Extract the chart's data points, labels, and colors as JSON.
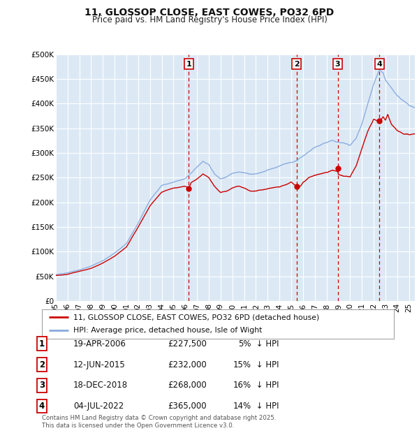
{
  "title": "11, GLOSSOP CLOSE, EAST COWES, PO32 6PD",
  "subtitle": "Price paid vs. HM Land Registry's House Price Index (HPI)",
  "legend_line1": "11, GLOSSOP CLOSE, EAST COWES, PO32 6PD (detached house)",
  "legend_line2": "HPI: Average price, detached house, Isle of Wight",
  "plot_bg_color": "#dce9f5",
  "grid_color": "#ffffff",
  "line_color_property": "#cc0000",
  "line_color_hpi": "#88aadd",
  "x_start": 1995,
  "x_end": 2025.5,
  "y_min": 0,
  "y_max": 500000,
  "yticks": [
    0,
    50000,
    100000,
    150000,
    200000,
    250000,
    300000,
    350000,
    400000,
    450000,
    500000
  ],
  "ytick_labels": [
    "£0",
    "£50K",
    "£100K",
    "£150K",
    "£200K",
    "£250K",
    "£300K",
    "£350K",
    "£400K",
    "£450K",
    "£500K"
  ],
  "transactions": [
    {
      "num": 1,
      "date": "19-APR-2006",
      "year": 2006.3,
      "price": 227500,
      "pct": "5%",
      "dir": "↓"
    },
    {
      "num": 2,
      "date": "12-JUN-2015",
      "year": 2015.45,
      "price": 232000,
      "pct": "15%",
      "dir": "↓"
    },
    {
      "num": 3,
      "date": "18-DEC-2018",
      "year": 2018.95,
      "price": 268000,
      "pct": "16%",
      "dir": "↓"
    },
    {
      "num": 4,
      "date": "04-JUL-2022",
      "year": 2022.5,
      "price": 365000,
      "pct": "14%",
      "dir": "↓"
    }
  ],
  "footer": "Contains HM Land Registry data © Crown copyright and database right 2025.\nThis data is licensed under the Open Government Licence v3.0.",
  "xticks": [
    1995,
    1996,
    1997,
    1998,
    1999,
    2000,
    2001,
    2002,
    2003,
    2004,
    2005,
    2006,
    2007,
    2008,
    2009,
    2010,
    2011,
    2012,
    2013,
    2014,
    2015,
    2016,
    2017,
    2018,
    2019,
    2020,
    2021,
    2022,
    2023,
    2024,
    2025
  ],
  "hpi_keypoints": [
    [
      1995.0,
      52000
    ],
    [
      1996.0,
      56000
    ],
    [
      1997.0,
      62000
    ],
    [
      1998.0,
      70000
    ],
    [
      1999.0,
      82000
    ],
    [
      2000.0,
      98000
    ],
    [
      2001.0,
      118000
    ],
    [
      2002.0,
      158000
    ],
    [
      2003.0,
      205000
    ],
    [
      2004.0,
      235000
    ],
    [
      2005.0,
      242000
    ],
    [
      2006.0,
      248000
    ],
    [
      2006.5,
      260000
    ],
    [
      2007.0,
      272000
    ],
    [
      2007.5,
      285000
    ],
    [
      2008.0,
      278000
    ],
    [
      2008.5,
      258000
    ],
    [
      2009.0,
      248000
    ],
    [
      2009.5,
      252000
    ],
    [
      2010.0,
      258000
    ],
    [
      2010.5,
      262000
    ],
    [
      2011.0,
      260000
    ],
    [
      2011.5,
      255000
    ],
    [
      2012.0,
      255000
    ],
    [
      2012.5,
      258000
    ],
    [
      2013.0,
      262000
    ],
    [
      2013.5,
      265000
    ],
    [
      2014.0,
      270000
    ],
    [
      2014.5,
      275000
    ],
    [
      2015.0,
      278000
    ],
    [
      2015.5,
      282000
    ],
    [
      2016.0,
      292000
    ],
    [
      2016.5,
      300000
    ],
    [
      2017.0,
      308000
    ],
    [
      2017.5,
      312000
    ],
    [
      2018.0,
      318000
    ],
    [
      2018.5,
      322000
    ],
    [
      2019.0,
      320000
    ],
    [
      2019.5,
      318000
    ],
    [
      2020.0,
      315000
    ],
    [
      2020.5,
      330000
    ],
    [
      2021.0,
      360000
    ],
    [
      2021.5,
      400000
    ],
    [
      2022.0,
      440000
    ],
    [
      2022.5,
      470000
    ],
    [
      2022.8,
      465000
    ],
    [
      2023.0,
      450000
    ],
    [
      2023.5,
      435000
    ],
    [
      2024.0,
      420000
    ],
    [
      2024.5,
      410000
    ],
    [
      2025.0,
      400000
    ],
    [
      2025.5,
      395000
    ]
  ],
  "prop_keypoints": [
    [
      1995.0,
      50000
    ],
    [
      1996.0,
      52000
    ],
    [
      1997.0,
      58000
    ],
    [
      1998.0,
      64000
    ],
    [
      1999.0,
      76000
    ],
    [
      2000.0,
      90000
    ],
    [
      2001.0,
      108000
    ],
    [
      2002.0,
      148000
    ],
    [
      2003.0,
      192000
    ],
    [
      2004.0,
      220000
    ],
    [
      2005.0,
      228000
    ],
    [
      2006.0,
      232000
    ],
    [
      2006.3,
      227500
    ],
    [
      2006.5,
      240000
    ],
    [
      2007.0,
      248000
    ],
    [
      2007.5,
      258000
    ],
    [
      2008.0,
      250000
    ],
    [
      2008.5,
      232000
    ],
    [
      2009.0,
      220000
    ],
    [
      2009.5,
      222000
    ],
    [
      2010.0,
      228000
    ],
    [
      2010.5,
      232000
    ],
    [
      2011.0,
      228000
    ],
    [
      2011.5,
      222000
    ],
    [
      2012.0,
      222000
    ],
    [
      2012.5,
      225000
    ],
    [
      2013.0,
      228000
    ],
    [
      2013.5,
      230000
    ],
    [
      2014.0,
      232000
    ],
    [
      2014.5,
      235000
    ],
    [
      2015.0,
      240000
    ],
    [
      2015.45,
      232000
    ],
    [
      2015.8,
      235000
    ],
    [
      2016.0,
      242000
    ],
    [
      2016.5,
      252000
    ],
    [
      2017.0,
      258000
    ],
    [
      2017.5,
      262000
    ],
    [
      2018.0,
      265000
    ],
    [
      2018.5,
      270000
    ],
    [
      2018.95,
      268000
    ],
    [
      2019.0,
      262000
    ],
    [
      2019.5,
      258000
    ],
    [
      2020.0,
      255000
    ],
    [
      2020.5,
      275000
    ],
    [
      2021.0,
      310000
    ],
    [
      2021.5,
      345000
    ],
    [
      2022.0,
      370000
    ],
    [
      2022.5,
      365000
    ],
    [
      2022.8,
      375000
    ],
    [
      2023.0,
      368000
    ],
    [
      2023.2,
      380000
    ],
    [
      2023.5,
      360000
    ],
    [
      2024.0,
      348000
    ],
    [
      2024.5,
      342000
    ],
    [
      2025.0,
      340000
    ],
    [
      2025.5,
      342000
    ]
  ]
}
